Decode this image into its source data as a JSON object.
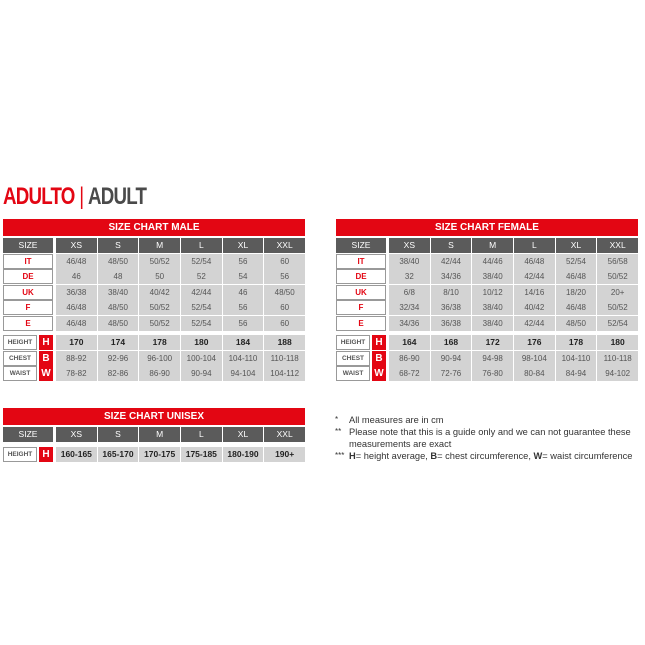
{
  "heading": {
    "primary": "ADULTO",
    "separator": "|",
    "secondary": "ADULT"
  },
  "sizes": [
    "XS",
    "S",
    "M",
    "L",
    "XL",
    "XXL"
  ],
  "size_label": "SIZE",
  "male": {
    "title": "SIZE CHART MALE",
    "size_rows": [
      {
        "label": "IT",
        "values": [
          "46/48",
          "48/50",
          "50/52",
          "52/54",
          "56",
          "60"
        ]
      },
      {
        "label": "DE",
        "values": [
          "46",
          "48",
          "50",
          "52",
          "54",
          "56"
        ]
      },
      {
        "label": "UK",
        "values": [
          "36/38",
          "38/40",
          "40/42",
          "42/44",
          "46",
          "48/50"
        ]
      },
      {
        "label": "F",
        "values": [
          "46/48",
          "48/50",
          "50/52",
          "52/54",
          "56",
          "60"
        ]
      },
      {
        "label": "E",
        "values": [
          "46/48",
          "48/50",
          "50/52",
          "52/54",
          "56",
          "60"
        ]
      }
    ],
    "measure_rows": [
      {
        "label": "HEIGHT",
        "letter": "H",
        "values": [
          "170",
          "174",
          "178",
          "180",
          "184",
          "188"
        ]
      },
      {
        "label": "CHEST",
        "letter": "B",
        "values": [
          "88-92",
          "92-96",
          "96-100",
          "100-104",
          "104-110",
          "110-118"
        ]
      },
      {
        "label": "WAIST",
        "letter": "W",
        "values": [
          "78-82",
          "82-86",
          "86-90",
          "90-94",
          "94-104",
          "104-112"
        ]
      }
    ]
  },
  "female": {
    "title": "SIZE CHART FEMALE",
    "size_rows": [
      {
        "label": "IT",
        "values": [
          "38/40",
          "42/44",
          "44/46",
          "46/48",
          "52/54",
          "56/58"
        ]
      },
      {
        "label": "DE",
        "values": [
          "32",
          "34/36",
          "38/40",
          "42/44",
          "46/48",
          "50/52"
        ]
      },
      {
        "label": "UK",
        "values": [
          "6/8",
          "8/10",
          "10/12",
          "14/16",
          "18/20",
          "20+"
        ]
      },
      {
        "label": "F",
        "values": [
          "32/34",
          "36/38",
          "38/40",
          "40/42",
          "46/48",
          "50/52"
        ]
      },
      {
        "label": "E",
        "values": [
          "34/36",
          "36/38",
          "38/40",
          "42/44",
          "48/50",
          "52/54"
        ]
      }
    ],
    "measure_rows": [
      {
        "label": "HEIGHT",
        "letter": "H",
        "values": [
          "164",
          "168",
          "172",
          "176",
          "178",
          "180"
        ]
      },
      {
        "label": "CHEST",
        "letter": "B",
        "values": [
          "86-90",
          "90-94",
          "94-98",
          "98-104",
          "104-110",
          "110-118"
        ]
      },
      {
        "label": "WAIST",
        "letter": "W",
        "values": [
          "68-72",
          "72-76",
          "76-80",
          "80-84",
          "84-94",
          "94-102"
        ]
      }
    ]
  },
  "unisex": {
    "title": "SIZE CHART UNISEX",
    "size_rows": [],
    "measure_rows": [
      {
        "label": "HEIGHT",
        "letter": "H",
        "values": [
          "160-165",
          "165-170",
          "170-175",
          "175-185",
          "180-190",
          "190+"
        ]
      }
    ]
  },
  "notes": [
    {
      "marker": "*",
      "text": "All measures are in cm"
    },
    {
      "marker": "**",
      "text": "Please note that this is a guide only and we can not guarantee these measurements are exact"
    },
    {
      "marker": "***",
      "parts": [
        {
          "b": "H",
          "t": "= height average, "
        },
        {
          "b": "B",
          "t": "= chest circumference, "
        },
        {
          "b": "W",
          "t": "= waist circumference"
        }
      ]
    }
  ],
  "colors": {
    "accent": "#e30613",
    "header": "#5b5b5b",
    "cell": "#d3d3d3"
  }
}
